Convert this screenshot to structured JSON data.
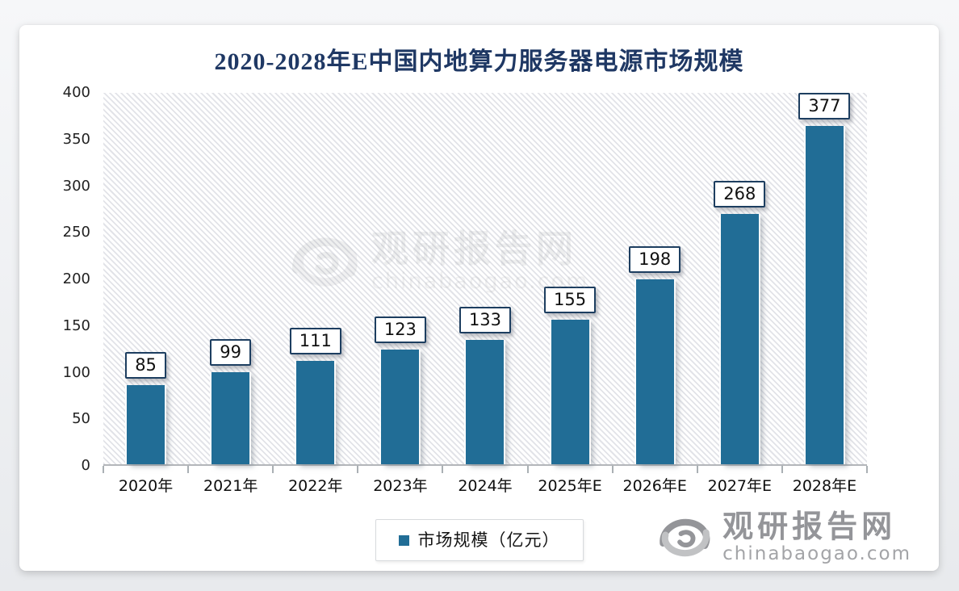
{
  "chart_data": {
    "type": "bar",
    "title": "2020-2028年E中国内地算力服务器电源市场规模",
    "categories": [
      "2020年",
      "2021年",
      "2022年",
      "2023年",
      "2024年",
      "2025年E",
      "2026年E",
      "2027年E",
      "2028年E"
    ],
    "values": [
      85,
      99,
      111,
      123,
      133,
      155,
      198,
      268,
      377
    ],
    "series_name": "市场规模（亿元）",
    "xlabel": "",
    "ylabel": "",
    "ylim": [
      0,
      400
    ],
    "ytick_step": 50,
    "grid": false,
    "legend_position": "bottom",
    "bar_color": "#216d96",
    "title_color": "#1f3864"
  },
  "legend": {
    "label": "市场规模（亿元）"
  },
  "watermark": {
    "brand": "观研报告网",
    "domain": "chinabaogao.com"
  }
}
